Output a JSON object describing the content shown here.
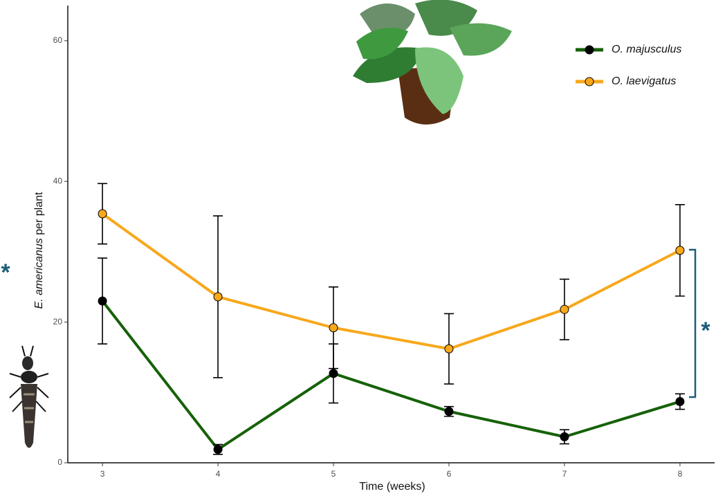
{
  "chart_data": {
    "type": "line",
    "xlabel": "Time (weeks)",
    "ylabel": {
      "italic": "E. americanus",
      "rest": "per plant"
    },
    "x": [
      3,
      4,
      5,
      6,
      7,
      8
    ],
    "xlim": [
      2.7,
      8.3
    ],
    "xticks": [
      3,
      4,
      5,
      6,
      7,
      8
    ],
    "ylim": [
      0,
      65
    ],
    "yticks": [
      0,
      20,
      40,
      60
    ],
    "grid": false,
    "legend": "upper right",
    "annotations": [
      "*",
      "*"
    ],
    "series": [
      {
        "name": "O. majusculus",
        "color": "#166108",
        "marker": "filled",
        "values": [
          23.0,
          1.9,
          12.7,
          7.3,
          3.7,
          8.7
        ],
        "errors": [
          6.1,
          0.7,
          4.2,
          0.7,
          1.0,
          1.1
        ]
      },
      {
        "name": "O. laevigatus",
        "color": "#f7a81b",
        "marker": "open",
        "values": [
          35.4,
          23.6,
          19.2,
          16.2,
          21.8,
          30.2
        ],
        "errors": [
          4.3,
          11.5,
          5.8,
          5.0,
          4.3,
          6.5
        ]
      }
    ]
  }
}
